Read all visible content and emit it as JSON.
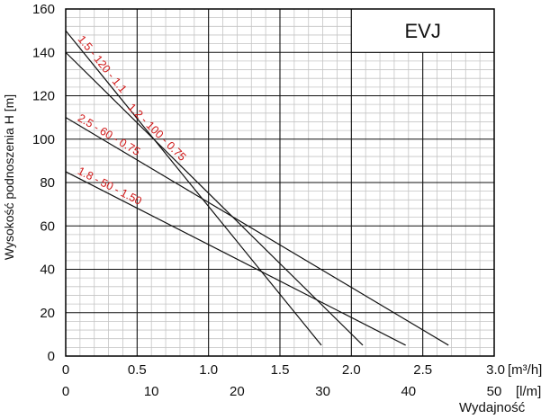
{
  "chart_data": {
    "type": "line",
    "model": "EVJ",
    "ylabel": "Wysokość podnoszenia H [m]",
    "xlabel": "Wydajność",
    "x_unit_primary": "[m³/h]",
    "x_unit_secondary": "[l/m]",
    "xlim": [
      0,
      3.0
    ],
    "ylim": [
      0,
      160
    ],
    "x_ticks": [
      "0",
      "0.5",
      "1.0",
      "1.5",
      "2.0",
      "2.5",
      "3.0"
    ],
    "x2_ticks": [
      "0",
      "10",
      "20",
      "30",
      "40",
      "50"
    ],
    "y_ticks": [
      "0",
      "20",
      "40",
      "60",
      "80",
      "100",
      "120",
      "140",
      "160"
    ],
    "grid": true,
    "series": [
      {
        "name": "1.5 - 120 - 1.1",
        "x": [
          0,
          1.79
        ],
        "y": [
          150,
          5
        ]
      },
      {
        "name": "1.2 - 100 - 0.75",
        "x": [
          0,
          2.08
        ],
        "y": [
          140,
          5
        ]
      },
      {
        "name": "2.5 - 60 - 0.75",
        "x": [
          0,
          2.68
        ],
        "y": [
          110,
          5
        ]
      },
      {
        "name": "1.8 - 50 - 1.50",
        "x": [
          0,
          2.38
        ],
        "y": [
          85,
          5
        ]
      }
    ]
  }
}
